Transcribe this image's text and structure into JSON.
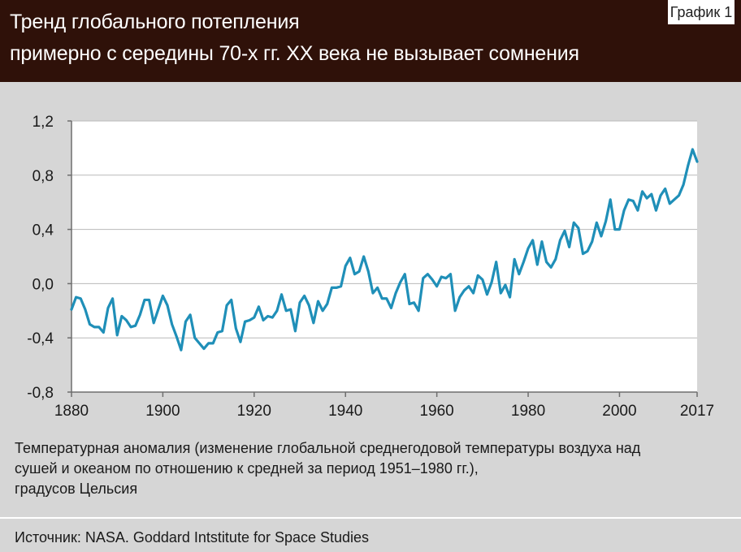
{
  "header": {
    "title_line1": "Тренд глобального потепления",
    "title_line2": "примерно с середины 70-х гг. XX века не вызывает сомнения",
    "badge": "График 1"
  },
  "colors": {
    "header_bg": "#2f1109",
    "plot_bg": "#ffffff",
    "line": "#1f8fb8",
    "page_bg": "#d6d6d6"
  },
  "chart_data": {
    "type": "line",
    "title": "Тренд глобального потепления примерно с середины 70-х гг. XX века не вызывает сомнения",
    "xlabel": "",
    "ylabel": "",
    "xlim": [
      1880,
      2017
    ],
    "ylim": [
      -0.8,
      1.2
    ],
    "grid": "horizontal",
    "legend": "none",
    "yticks": [
      1.2,
      0.8,
      0.4,
      0.0,
      -0.4,
      -0.8
    ],
    "ytick_labels": [
      "1,2",
      "0,8",
      "0,4",
      "0,0",
      "-0,4",
      "-0,8"
    ],
    "xticks": [
      1880,
      1900,
      1920,
      1940,
      1960,
      1980,
      2000,
      2017
    ],
    "xtick_labels": [
      "1880",
      "1900",
      "1920",
      "1940",
      "1960",
      "1980",
      "2000",
      "2017"
    ],
    "x_start": 1880,
    "series": [
      {
        "values": [
          -0.19,
          -0.1,
          -0.11,
          -0.19,
          -0.3,
          -0.32,
          -0.32,
          -0.36,
          -0.18,
          -0.11,
          -0.38,
          -0.24,
          -0.27,
          -0.32,
          -0.31,
          -0.23,
          -0.12,
          -0.12,
          -0.29,
          -0.19,
          -0.09,
          -0.16,
          -0.3,
          -0.39,
          -0.49,
          -0.28,
          -0.23,
          -0.4,
          -0.44,
          -0.48,
          -0.44,
          -0.44,
          -0.36,
          -0.35,
          -0.16,
          -0.12,
          -0.33,
          -0.43,
          -0.28,
          -0.27,
          -0.25,
          -0.17,
          -0.27,
          -0.24,
          -0.25,
          -0.2,
          -0.08,
          -0.2,
          -0.19,
          -0.35,
          -0.14,
          -0.09,
          -0.16,
          -0.29,
          -0.13,
          -0.2,
          -0.15,
          -0.03,
          -0.03,
          -0.02,
          0.13,
          0.19,
          0.07,
          0.09,
          0.2,
          0.09,
          -0.07,
          -0.03,
          -0.11,
          -0.11,
          -0.18,
          -0.07,
          0.01,
          0.07,
          -0.15,
          -0.14,
          -0.2,
          0.04,
          0.07,
          0.03,
          -0.02,
          0.05,
          0.04,
          0.07,
          -0.2,
          -0.1,
          -0.05,
          -0.02,
          -0.07,
          0.06,
          0.03,
          -0.08,
          0.01,
          0.16,
          -0.07,
          -0.01,
          -0.1,
          0.18,
          0.07,
          0.16,
          0.26,
          0.32,
          0.14,
          0.31,
          0.16,
          0.12,
          0.18,
          0.32,
          0.39,
          0.27,
          0.45,
          0.41,
          0.22,
          0.24,
          0.31,
          0.45,
          0.35,
          0.46,
          0.62,
          0.4,
          0.4,
          0.54,
          0.62,
          0.61,
          0.54,
          0.68,
          0.63,
          0.66,
          0.54,
          0.65,
          0.7,
          0.59,
          0.62,
          0.65,
          0.73,
          0.87,
          0.99,
          0.9
        ]
      }
    ]
  },
  "footnote": {
    "line1": "Температурная аномалия (изменение глобальной среднегодовой температуры воздуха над",
    "line2": "сушей и океаном по отношению к средней за период 1951–1980 гг.),",
    "line3": "градусов Цельсия"
  },
  "source": "Источник: NASA. Goddard Intstitute for Space Studies"
}
